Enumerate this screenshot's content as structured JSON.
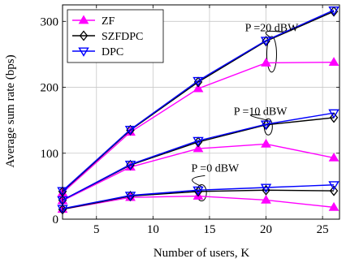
{
  "chart_data": {
    "type": "line",
    "xlabel": "Number of users, K",
    "ylabel": "Average sum rate (bps)",
    "xlim": [
      2,
      26.5
    ],
    "ylim": [
      0,
      325
    ],
    "xticks": [
      5,
      10,
      15,
      20,
      25
    ],
    "yticks": [
      0,
      100,
      200,
      300
    ],
    "x": [
      2,
      8,
      14,
      20,
      26
    ],
    "grid": true,
    "legend_position": "top-left",
    "series": [
      {
        "name": "ZF",
        "color": "#ff00ff",
        "marker": "triangle-up",
        "group": "P =20 dBW",
        "values": [
          40,
          132,
          198,
          237,
          238
        ]
      },
      {
        "name": "SZFDPC",
        "color": "#000000",
        "marker": "diamond",
        "group": "P =20 dBW",
        "values": [
          42,
          135,
          208,
          270,
          315
        ]
      },
      {
        "name": "DPC",
        "color": "#0000ff",
        "marker": "triangle-down",
        "group": "P =20 dBW",
        "values": [
          43,
          136,
          210,
          271,
          317
        ]
      },
      {
        "name": "ZF",
        "color": "#ff00ff",
        "marker": "triangle-up",
        "group": "P =10 dBW",
        "values": [
          28,
          79,
          107,
          114,
          93
        ]
      },
      {
        "name": "SZFDPC",
        "color": "#000000",
        "marker": "diamond",
        "group": "P =10 dBW",
        "values": [
          29,
          82,
          117,
          143,
          154
        ]
      },
      {
        "name": "DPC",
        "color": "#0000ff",
        "marker": "triangle-down",
        "group": "P =10 dBW",
        "values": [
          29,
          83,
          119,
          144,
          161
        ]
      },
      {
        "name": "ZF",
        "color": "#ff00ff",
        "marker": "triangle-up",
        "group": "P =0 dBW",
        "values": [
          15,
          33,
          35,
          29,
          18
        ]
      },
      {
        "name": "SZFDPC",
        "color": "#000000",
        "marker": "diamond",
        "group": "P =0 dBW",
        "values": [
          15,
          35,
          42,
          44,
          43
        ]
      },
      {
        "name": "DPC",
        "color": "#0000ff",
        "marker": "triangle-down",
        "group": "P =0 dBW",
        "values": [
          16,
          36,
          44,
          48,
          52
        ]
      }
    ],
    "legend": [
      {
        "label": "ZF",
        "color": "#ff00ff",
        "marker": "triangle-up"
      },
      {
        "label": "SZFDPC",
        "color": "#000000",
        "marker": "diamond"
      },
      {
        "label": "DPC",
        "color": "#0000ff",
        "marker": "triangle-down"
      }
    ],
    "annotations": [
      {
        "text": "P =20 dBW",
        "x": 20.5,
        "y": 285
      },
      {
        "text": "P =10 dBW",
        "x": 19.5,
        "y": 158
      },
      {
        "text": "P =0 dBW",
        "x": 15.5,
        "y": 72
      }
    ]
  }
}
